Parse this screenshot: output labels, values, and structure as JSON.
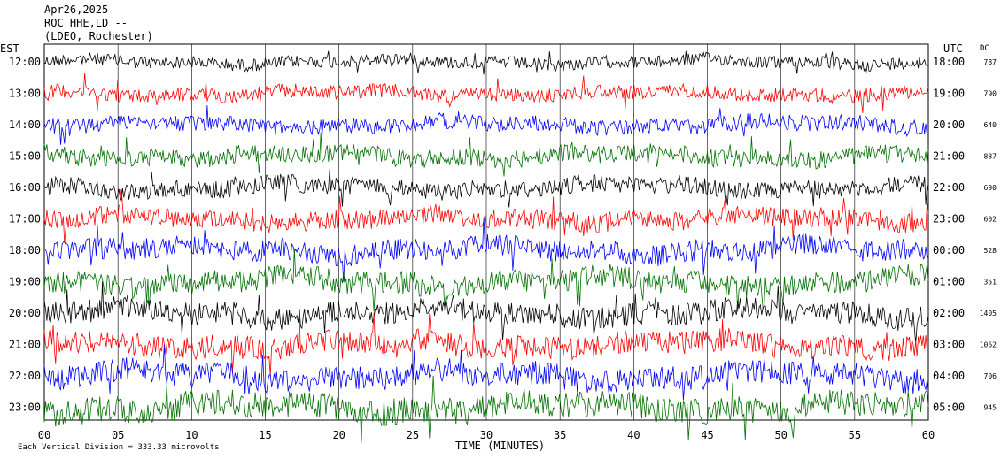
{
  "header": {
    "date": "Apr26,2025",
    "station": "ROC HHE,LD --",
    "network": "(LDEO, Rochester)"
  },
  "axis": {
    "left_label": "EST",
    "right_label": "UTC",
    "dc_label": "DC",
    "xlabel": "TIME (MINUTES)",
    "footer": "Each Vertical Division =  333.33 microvolts"
  },
  "chart_data": {
    "type": "line",
    "x_unit": "minutes",
    "xlim": [
      0,
      60
    ],
    "x_ticks": [
      "00",
      "05",
      "10",
      "15",
      "20",
      "25",
      "30",
      "35",
      "40",
      "45",
      "50",
      "55",
      "60"
    ],
    "trace_colors": [
      "#000000",
      "#ff0000",
      "#0000ff",
      "#007000"
    ],
    "rows": [
      {
        "est": "12:00",
        "utc": "18:00",
        "dc": "787",
        "color": "#000000",
        "amp": 7
      },
      {
        "est": "13:00",
        "utc": "19:00",
        "dc": "790",
        "color": "#ff0000",
        "amp": 8
      },
      {
        "est": "14:00",
        "utc": "20:00",
        "dc": "640",
        "color": "#0000ff",
        "amp": 9
      },
      {
        "est": "15:00",
        "utc": "21:00",
        "dc": "887",
        "color": "#007000",
        "amp": 10
      },
      {
        "est": "16:00",
        "utc": "22:00",
        "dc": "690",
        "color": "#000000",
        "amp": 10
      },
      {
        "est": "17:00",
        "utc": "23:00",
        "dc": "602",
        "color": "#ff0000",
        "amp": 11
      },
      {
        "est": "18:00",
        "utc": "00:00",
        "dc": "528",
        "color": "#0000ff",
        "amp": 12
      },
      {
        "est": "19:00",
        "utc": "01:00",
        "dc": "351",
        "color": "#007000",
        "amp": 13
      },
      {
        "est": "20:00",
        "utc": "02:00",
        "dc": "1405",
        "color": "#000000",
        "amp": 13
      },
      {
        "est": "21:00",
        "utc": "03:00",
        "dc": "1062",
        "color": "#ff0000",
        "amp": 13
      },
      {
        "est": "22:00",
        "utc": "04:00",
        "dc": "706",
        "color": "#0000ff",
        "amp": 14
      },
      {
        "est": "23:00",
        "utc": "05:00",
        "dc": "945",
        "color": "#007000",
        "amp": 15
      }
    ],
    "grid": true,
    "vertical_grid_every_minutes": 5
  }
}
